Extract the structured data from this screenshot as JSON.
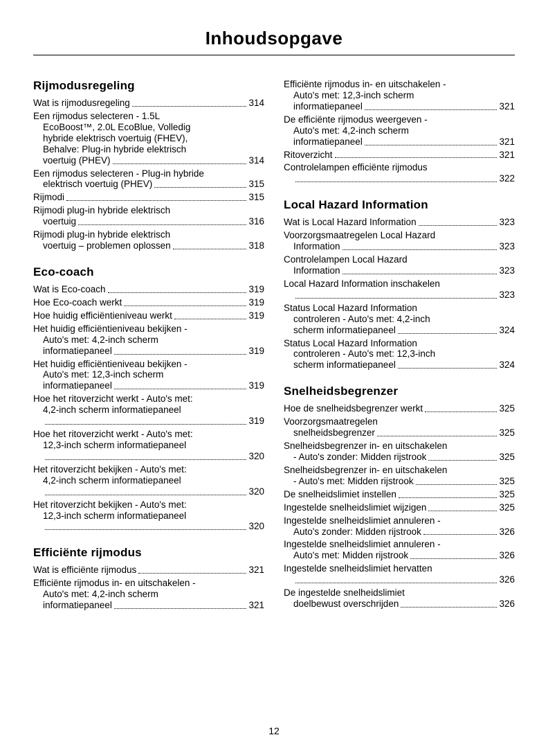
{
  "title": "Inhoudsopgave",
  "pageNumber": "12",
  "leftColumn": [
    {
      "heading": "Rijmodusregeling",
      "items": [
        {
          "label": "Wat is rijmodusregeling",
          "page": "314"
        },
        {
          "labelLines": [
            "Een rijmodus selecteren - 1.5L",
            "EcoBoost™, 2.0L EcoBlue, Volledig",
            "hybride elektrisch voertuig (FHEV),",
            "Behalve: Plug-in hybride elektrisch",
            "voertuig (PHEV)"
          ],
          "page": "314"
        },
        {
          "labelLines": [
            "Een rijmodus selecteren - Plug-in hybride",
            "elektrisch voertuig (PHEV)"
          ],
          "page": "315"
        },
        {
          "label": "Rijmodi",
          "page": "315"
        },
        {
          "labelLines": [
            "Rijmodi plug-in hybride elektrisch",
            "voertuig"
          ],
          "page": "316"
        },
        {
          "labelLines": [
            "Rijmodi plug-in hybride elektrisch",
            "voertuig – problemen oplossen"
          ],
          "page": "318"
        }
      ]
    },
    {
      "heading": "Eco-coach",
      "items": [
        {
          "label": "Wat is Eco-coach",
          "page": "319"
        },
        {
          "label": "Hoe Eco-coach werkt",
          "page": "319"
        },
        {
          "label": "Hoe huidig efficiëntieniveau werkt",
          "page": "319"
        },
        {
          "labelLines": [
            "Het huidig efficiëntieniveau bekijken -",
            "Auto's met: 4,2-inch scherm",
            "informatiepaneel"
          ],
          "page": "319"
        },
        {
          "labelLines": [
            "Het huidig efficiëntieniveau bekijken -",
            "Auto's met: 12,3-inch scherm",
            "informatiepaneel"
          ],
          "page": "319"
        },
        {
          "labelLines": [
            "Hoe het ritoverzicht werkt - Auto's met:",
            "4,2-inch scherm informatiepaneel",
            ""
          ],
          "page": "319"
        },
        {
          "labelLines": [
            "Hoe het ritoverzicht werkt - Auto's met:",
            "12,3-inch scherm informatiepaneel",
            ""
          ],
          "page": "320"
        },
        {
          "labelLines": [
            "Het ritoverzicht bekijken - Auto's met:",
            "4,2-inch scherm informatiepaneel",
            ""
          ],
          "page": "320"
        },
        {
          "labelLines": [
            "Het ritoverzicht bekijken - Auto's met:",
            "12,3-inch scherm informatiepaneel",
            ""
          ],
          "page": "320"
        }
      ]
    },
    {
      "heading": "Efficiënte rijmodus",
      "items": [
        {
          "label": "Wat is efficiënte rijmodus",
          "page": "321"
        },
        {
          "labelLines": [
            "Efficiënte rijmodus in- en uitschakelen -",
            "Auto's met: 4,2-inch scherm",
            "informatiepaneel"
          ],
          "page": "321"
        }
      ]
    }
  ],
  "rightColumn": [
    {
      "heading": null,
      "items": [
        {
          "labelLines": [
            "Efficiënte rijmodus in- en uitschakelen -",
            "Auto's met: 12,3-inch scherm",
            "informatiepaneel"
          ],
          "page": "321"
        },
        {
          "labelLines": [
            "De efficiënte rijmodus weergeven -",
            "Auto's met: 4,2-inch scherm",
            "informatiepaneel"
          ],
          "page": "321"
        },
        {
          "label": "Ritoverzicht",
          "page": "321"
        },
        {
          "labelLines": [
            "Controlelampen efficiënte rijmodus",
            ""
          ],
          "page": "322"
        }
      ]
    },
    {
      "heading": "Local Hazard Information",
      "items": [
        {
          "label": "Wat is Local Hazard Information",
          "page": "323"
        },
        {
          "labelLines": [
            "Voorzorgsmaatregelen Local Hazard",
            "Information"
          ],
          "page": "323"
        },
        {
          "labelLines": [
            "Controlelampen Local Hazard",
            "Information"
          ],
          "page": "323"
        },
        {
          "labelLines": [
            "Local Hazard Information inschakelen",
            ""
          ],
          "page": "323"
        },
        {
          "labelLines": [
            "Status Local Hazard Information",
            "controleren - Auto's met: 4,2-inch",
            "scherm informatiepaneel"
          ],
          "page": "324"
        },
        {
          "labelLines": [
            "Status Local Hazard Information",
            "controleren - Auto's met: 12,3-inch",
            "scherm informatiepaneel"
          ],
          "page": "324"
        }
      ]
    },
    {
      "heading": "Snelheidsbegrenzer",
      "items": [
        {
          "label": "Hoe de snelheidsbegrenzer werkt",
          "page": "325"
        },
        {
          "labelLines": [
            "Voorzorgsmaatregelen",
            "snelheidsbegrenzer"
          ],
          "page": "325"
        },
        {
          "labelLines": [
            "Snelheidsbegrenzer in- en uitschakelen",
            "- Auto's zonder: Midden rijstrook"
          ],
          "page": "325"
        },
        {
          "labelLines": [
            "Snelheidsbegrenzer in- en uitschakelen",
            "- Auto's met: Midden rijstrook"
          ],
          "page": "325"
        },
        {
          "label": "De snelheidslimiet instellen",
          "page": "325"
        },
        {
          "label": "Ingestelde snelheidslimiet wijzigen",
          "page": "325"
        },
        {
          "labelLines": [
            "Ingestelde snelheidslimiet annuleren -",
            "Auto's zonder: Midden rijstrook"
          ],
          "page": "326"
        },
        {
          "labelLines": [
            "Ingestelde snelheidslimiet annuleren -",
            "Auto's met: Midden rijstrook"
          ],
          "page": "326"
        },
        {
          "labelLines": [
            "Ingestelde snelheidslimiet hervatten",
            ""
          ],
          "page": "326"
        },
        {
          "labelLines": [
            "De ingestelde snelheidslimiet",
            "doelbewust overschrijden"
          ],
          "page": "326"
        }
      ]
    }
  ]
}
